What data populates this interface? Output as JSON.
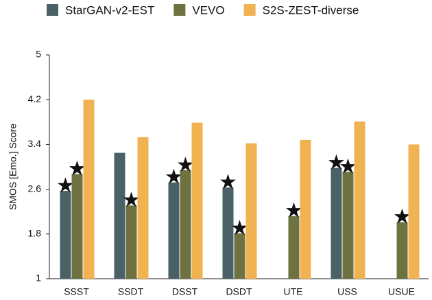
{
  "chart_data": {
    "type": "bar",
    "ylabel": "SMOS [Emo.] Score",
    "categories": [
      "SSST",
      "SSDT",
      "DSST",
      "DSDT",
      "UTE",
      "USS",
      "USUE"
    ],
    "series": [
      {
        "name": "StarGAN-v2-EST",
        "color": "#4a6167",
        "values": [
          2.57,
          3.25,
          2.72,
          2.63,
          null,
          2.98,
          null
        ],
        "starred": [
          true,
          false,
          true,
          true,
          false,
          true,
          false
        ]
      },
      {
        "name": "VEVO",
        "color": "#6e7240",
        "values": [
          2.87,
          2.31,
          2.94,
          1.81,
          2.12,
          2.91,
          2.01
        ],
        "starred": [
          true,
          true,
          true,
          true,
          true,
          true,
          true
        ]
      },
      {
        "name": "S2S-ZEST-diverse",
        "color": "#f1b352",
        "values": [
          4.2,
          3.53,
          3.79,
          3.42,
          3.48,
          3.81,
          3.4
        ],
        "starred": [
          false,
          false,
          false,
          false,
          false,
          false,
          false
        ]
      }
    ],
    "ylim": [
      1,
      5
    ],
    "yticks": [
      1,
      1.8,
      2.6,
      3.4,
      4.2,
      5
    ],
    "grid": false,
    "legend": "top"
  }
}
